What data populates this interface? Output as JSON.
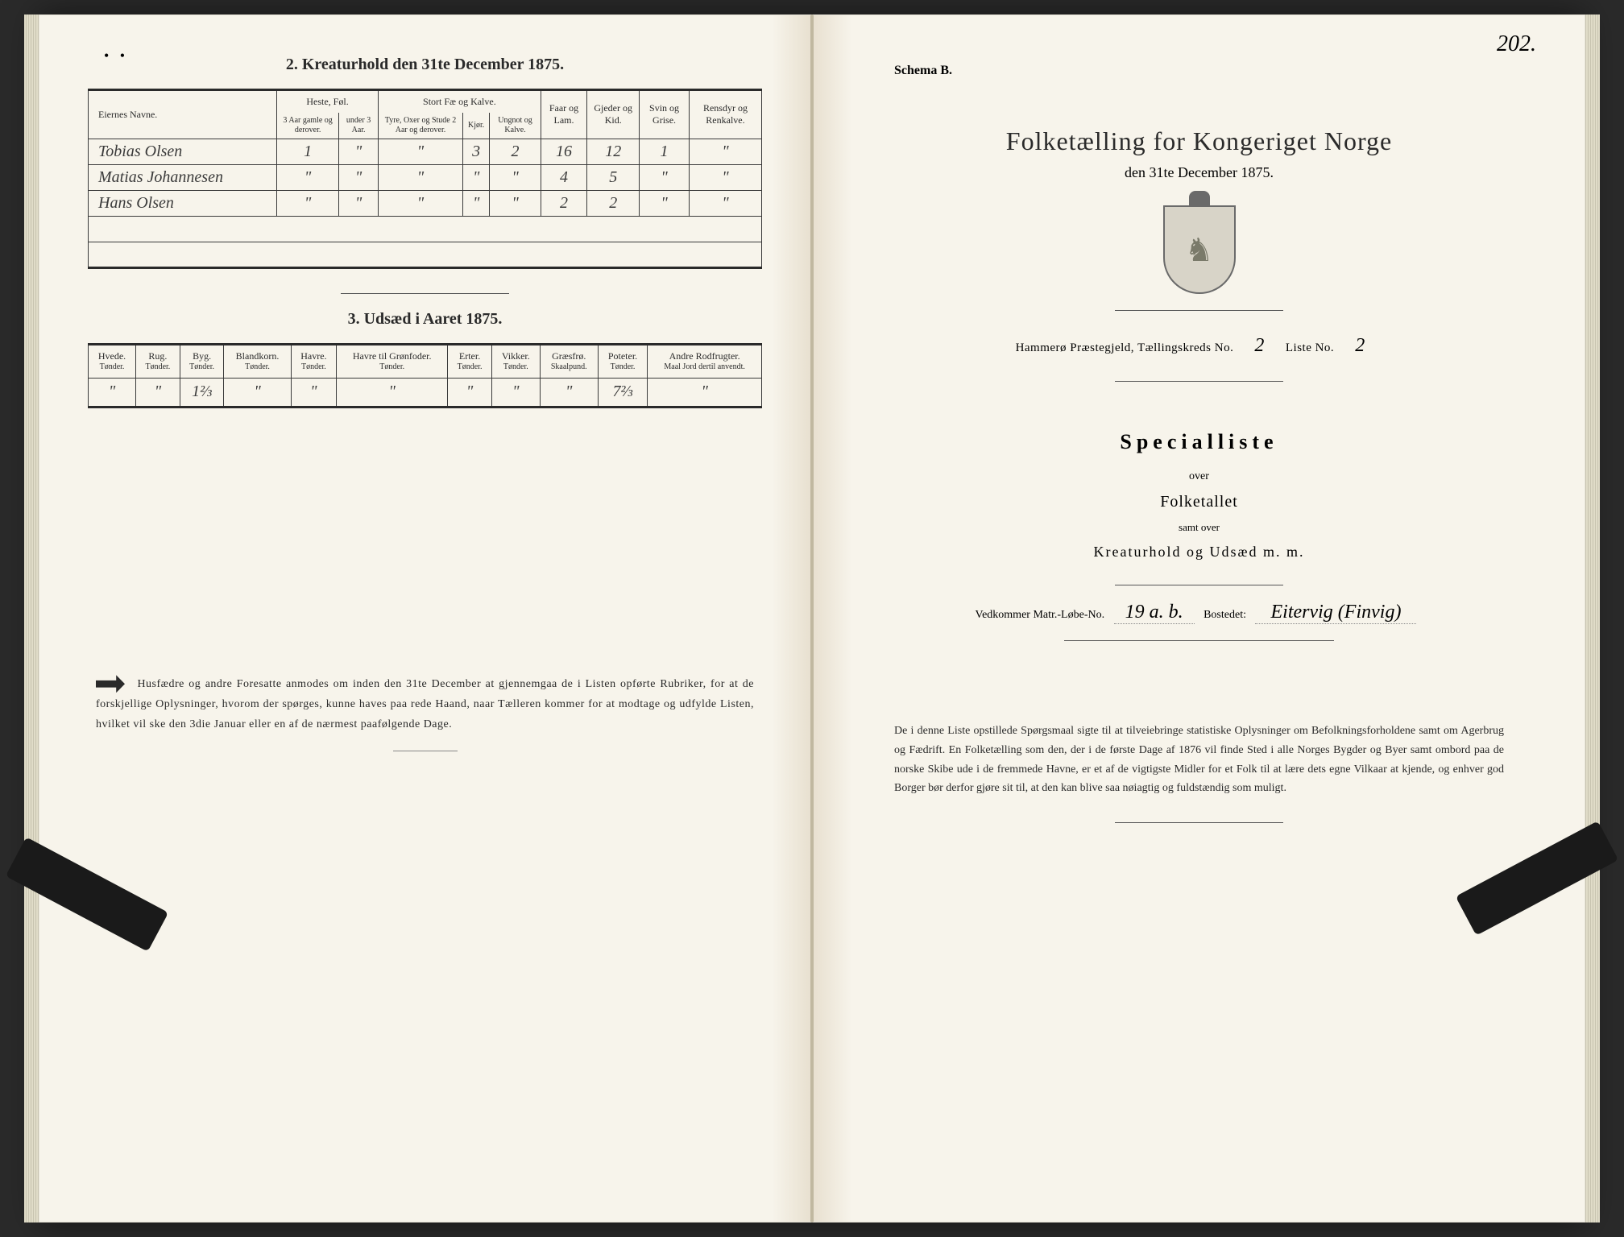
{
  "left": {
    "section2_title": "2. Kreaturhold den 31te December 1875.",
    "table1": {
      "headers": {
        "name": "Eiernes Navne.",
        "heste": "Heste, Føl.",
        "heste_sub1": "3 Aar gamle og derover.",
        "heste_sub2": "under 3 Aar.",
        "stort": "Stort Fæ og Kalve.",
        "stort_sub1": "Tyre, Oxer og Stude 2 Aar og derover.",
        "stort_sub2": "Kjør.",
        "stort_sub3": "Ungnot og Kalve.",
        "faar": "Faar og Lam.",
        "gjeder": "Gjeder og Kid.",
        "svin": "Svin og Grise.",
        "rensdyr": "Rensdyr og Renkalve."
      },
      "rows": [
        {
          "name": "Tobias Olsen",
          "h1": "1",
          "h2": "\"",
          "s1": "\"",
          "s2": "3",
          "s3": "2",
          "faar": "16",
          "gjed": "12",
          "svin": "1",
          "ren": "\""
        },
        {
          "name": "Matias Johannesen",
          "h1": "\"",
          "h2": "\"",
          "s1": "\"",
          "s2": "\"",
          "s3": "\"",
          "faar": "4",
          "gjed": "5",
          "svin": "\"",
          "ren": "\""
        },
        {
          "name": "Hans Olsen",
          "h1": "\"",
          "h2": "\"",
          "s1": "\"",
          "s2": "\"",
          "s3": "\"",
          "faar": "2",
          "gjed": "2",
          "svin": "\"",
          "ren": "\""
        }
      ]
    },
    "section3_title": "3. Udsæd i Aaret 1875.",
    "table2": {
      "headers": [
        "Hvede.",
        "Rug.",
        "Byg.",
        "Blandkorn.",
        "Havre.",
        "Havre til Grønfoder.",
        "Erter.",
        "Vikker.",
        "Græsfrø.",
        "Poteter.",
        "Andre Rodfrugter."
      ],
      "units": [
        "Tønder.",
        "Tønder.",
        "Tønder.",
        "Tønder.",
        "Tønder.",
        "Tønder.",
        "Tønder.",
        "Tønder.",
        "Skaalpund.",
        "Tønder.",
        "Maal Jord dertil anvendt."
      ],
      "row": [
        "\"",
        "\"",
        "1⅔",
        "\"",
        "\"",
        "\"",
        "\"",
        "\"",
        "\"",
        "7⅔",
        "\""
      ]
    },
    "footer": "Husfædre og andre Foresatte anmodes om inden den 31te December at gjennemgaa de i Listen opførte Rubriker, for at de forskjellige Oplysninger, hvorom der spørges, kunne haves paa rede Haand, naar Tælleren kommer for at modtage og udfylde Listen, hvilket vil ske den 3die Januar eller en af de nærmest paafølgende Dage."
  },
  "right": {
    "schema": "Schema B.",
    "page_number": "202.",
    "main_title": "Folketælling for Kongeriget Norge",
    "subtitle": "den 31te December 1875.",
    "census_line": {
      "prefix": "Hammerø Præstegjeld, Tællingskreds No.",
      "kreds": "2",
      "liste_label": "Liste No.",
      "liste": "2"
    },
    "special_title": "Specialliste",
    "over": "over",
    "folketallet": "Folketallet",
    "samt": "samt over",
    "kreatur": "Kreaturhold og Udsæd m. m.",
    "vedkommer": {
      "label1": "Vedkommer Matr.-Løbe-No.",
      "val1": "19 a. b.",
      "label2": "Bostedet:",
      "val2": "Eitervig (Finvig)"
    },
    "footer": "De i denne Liste opstillede Spørgsmaal sigte til at tilveiebringe statistiske Oplysninger om Befolkningsforholdene samt om Agerbrug og Fædrift. En Folketælling som den, der i de første Dage af 1876 vil finde Sted i alle Norges Bygder og Byer samt ombord paa de norske Skibe ude i de fremmede Havne, er et af de vigtigste Midler for et Folk til at lære dets egne Vilkaar at kjende, og enhver god Borger bør derfor gjøre sit til, at den kan blive saa nøiagtig og fuldstændig som muligt."
  }
}
